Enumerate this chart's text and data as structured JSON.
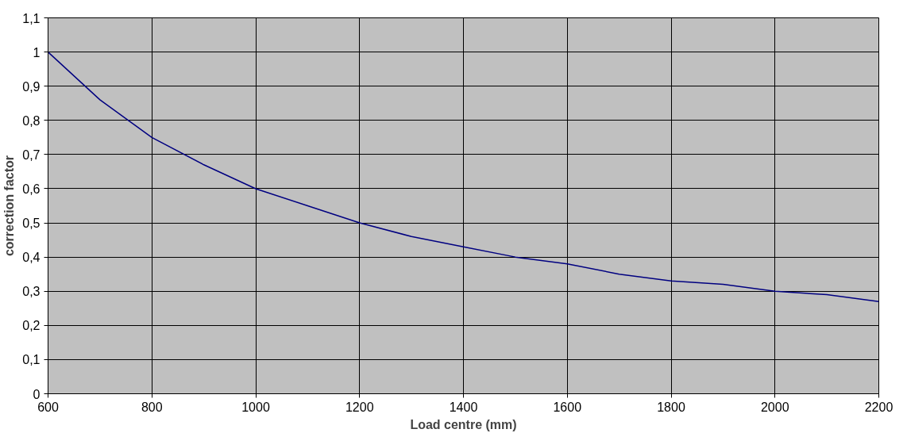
{
  "chart_data": {
    "type": "line",
    "xlabel": "Load centre (mm)",
    "ylabel": "correction factor",
    "x": [
      600,
      700,
      800,
      900,
      1000,
      1100,
      1200,
      1300,
      1400,
      1500,
      1600,
      1700,
      1800,
      1900,
      2000,
      2100,
      2200
    ],
    "series": [
      {
        "color": "#000080",
        "values": [
          1,
          0.86,
          0.75,
          0.67,
          0.6,
          0.55,
          0.5,
          0.46,
          0.43,
          0.4,
          0.38,
          0.35,
          0.33,
          0.32,
          0.3,
          0.29,
          0.27
        ]
      }
    ],
    "xlim": [
      600,
      2200
    ],
    "xticks": [
      600,
      800,
      1000,
      1200,
      1400,
      1600,
      1800,
      2000,
      2200
    ],
    "ylim": [
      0,
      1.1
    ],
    "yticks": [
      0,
      {
        "value": 0.1,
        "label": "0,1"
      },
      {
        "value": 0.2,
        "label": "0,2"
      },
      {
        "value": 0.3,
        "label": "0,3"
      },
      {
        "value": 0.4,
        "label": "0,4"
      },
      {
        "value": 0.5,
        "label": "0,5"
      },
      {
        "value": 0.6,
        "label": "0,6"
      },
      {
        "value": 0.7,
        "label": "0,7"
      },
      {
        "value": 0.8,
        "label": "0,8"
      },
      {
        "value": 0.9,
        "label": "0,9"
      },
      1,
      {
        "value": 1.1,
        "label": "1,1"
      }
    ],
    "grid": true,
    "marker": "none",
    "line_style": "solid"
  }
}
